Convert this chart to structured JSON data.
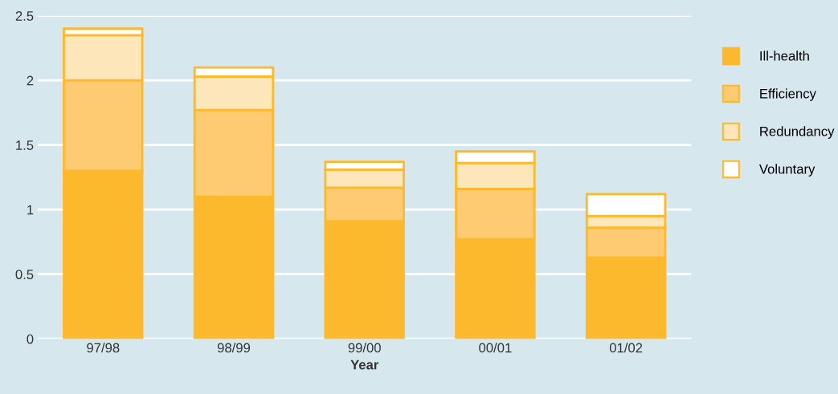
{
  "chart_data": {
    "type": "bar",
    "stacked": true,
    "xlabel": "Year",
    "categories": [
      "97/98",
      "98/99",
      "99/00",
      "00/01",
      "01/02"
    ],
    "series": [
      {
        "name": "Ill-health",
        "color": "#fdb92e",
        "values": [
          1.3,
          1.1,
          0.91,
          0.77,
          0.63
        ]
      },
      {
        "name": "Efficiency",
        "color": "#fecb72",
        "values": [
          0.7,
          0.67,
          0.26,
          0.39,
          0.23
        ]
      },
      {
        "name": "Redundancy",
        "color": "#fee6bb",
        "values": [
          0.35,
          0.26,
          0.14,
          0.2,
          0.09
        ]
      },
      {
        "name": "Voluntary",
        "color": "#ffffff",
        "values": [
          0.05,
          0.07,
          0.06,
          0.09,
          0.17
        ]
      }
    ],
    "ylim": [
      0,
      2.5
    ],
    "yticks": [
      0,
      0.5,
      1,
      1.5,
      2,
      2.5
    ],
    "grid": "y",
    "legend": "right"
  }
}
